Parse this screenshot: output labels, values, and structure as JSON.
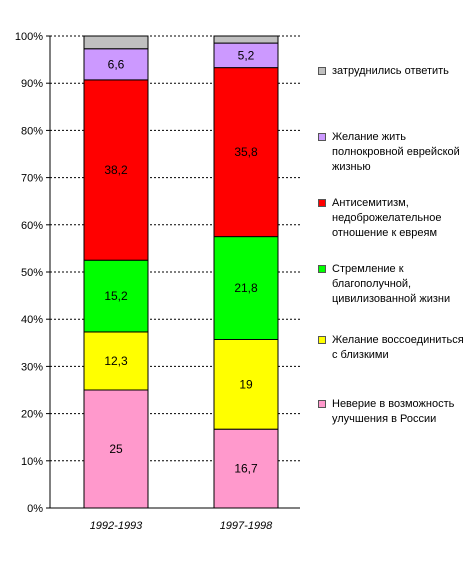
{
  "chart_data": {
    "type": "bar",
    "stacked": true,
    "categories": [
      "1992-1993",
      "1997-1998"
    ],
    "ylim": [
      0,
      100
    ],
    "y_ticks": [
      "0%",
      "10%",
      "20%",
      "30%",
      "40%",
      "50%",
      "60%",
      "70%",
      "80%",
      "90%",
      "100%"
    ],
    "grid": "dotted horizontal",
    "legend_position": "right",
    "series": [
      {
        "name": "Неверие в возможность улучшения в России",
        "color": "#ff99cc",
        "values": [
          25,
          16.7
        ],
        "labels": [
          "25",
          "16,7"
        ]
      },
      {
        "name": "Желание воссоединиться с близкими",
        "color": "#ffff00",
        "values": [
          12.3,
          19
        ],
        "labels": [
          "12,3",
          "19"
        ]
      },
      {
        "name": "Стремление к благополучной, цивилизованной жизни",
        "color": "#00ff00",
        "values": [
          15.2,
          21.8
        ],
        "labels": [
          "15,2",
          "21,8"
        ]
      },
      {
        "name": "Антисемитизм, недоброжелательное отношение к евреям",
        "color": "#ff0000",
        "values": [
          38.2,
          35.8
        ],
        "labels": [
          "38,2",
          "35,8"
        ]
      },
      {
        "name": "Желание жить полнокровной еврейской жизнью",
        "color": "#cc99ff",
        "values": [
          6.6,
          5.2
        ],
        "labels": [
          "6,6",
          "5,2"
        ]
      },
      {
        "name": "затруднились ответить",
        "color": "#c0c0c0",
        "values": [
          2.7,
          1.5
        ],
        "labels": [
          "",
          ""
        ]
      }
    ],
    "legend_lines": [
      [
        "затруднились ответить"
      ],
      [
        "Желание жить",
        "полнокровной еврейской",
        "жизнью"
      ],
      [
        "Антисемитизм,",
        "недоброжелательное",
        "отношение к евреям"
      ],
      [
        "Стремление к",
        "благополучной,",
        "цивилизованной жизни"
      ],
      [
        "Желание воссоединиться",
        "с близкими"
      ],
      [
        "Неверие в возможность",
        "улучшения в России"
      ]
    ]
  }
}
